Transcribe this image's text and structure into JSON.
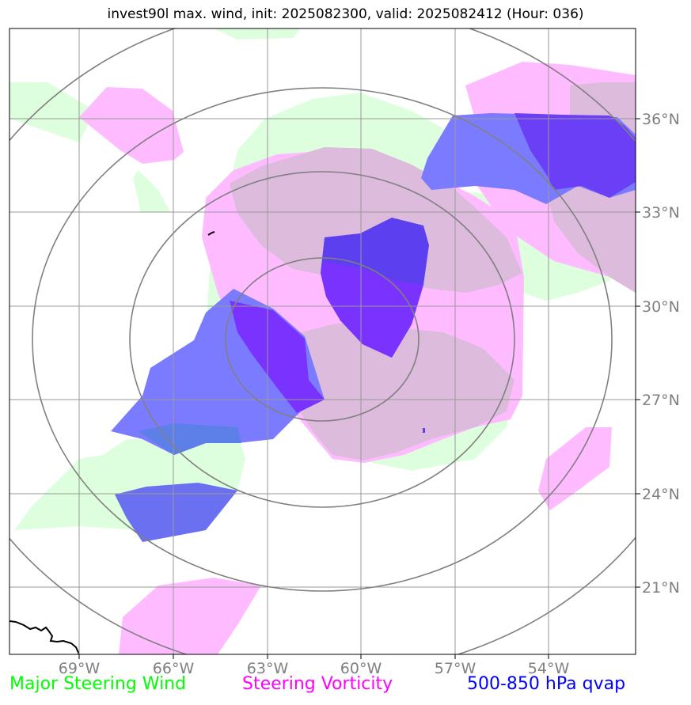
{
  "title": "invest90l max. wind, init: 2025082300, valid: 2025082412 (Hour: 036)",
  "lat_labels": [
    "36°N",
    "33°N",
    "30°N",
    "27°N",
    "24°N",
    "21°N"
  ],
  "lon_labels": [
    "69°W",
    "66°W",
    "63°W",
    "60°W",
    "57°W",
    "54°W"
  ],
  "legend": [
    {
      "label": "Major Steering Wind",
      "color": "#00ff00"
    },
    {
      "label": "Steering Vorticity",
      "color": "#ff00ff"
    },
    {
      "label": "500-850 hPa qvap",
      "color": "#0000ff"
    }
  ],
  "colors": {
    "wind_fill": "#ddffdd",
    "vorticity_fill": "#ffbbff",
    "overlap_fill": "#ddbbdd",
    "qvap_fill": "#7b7bff",
    "qvap_strong": "#5c3fee",
    "qvap_core": "#7a33ff",
    "grid": "#999999",
    "rings": "#808080",
    "axis_label": "#808080"
  }
}
